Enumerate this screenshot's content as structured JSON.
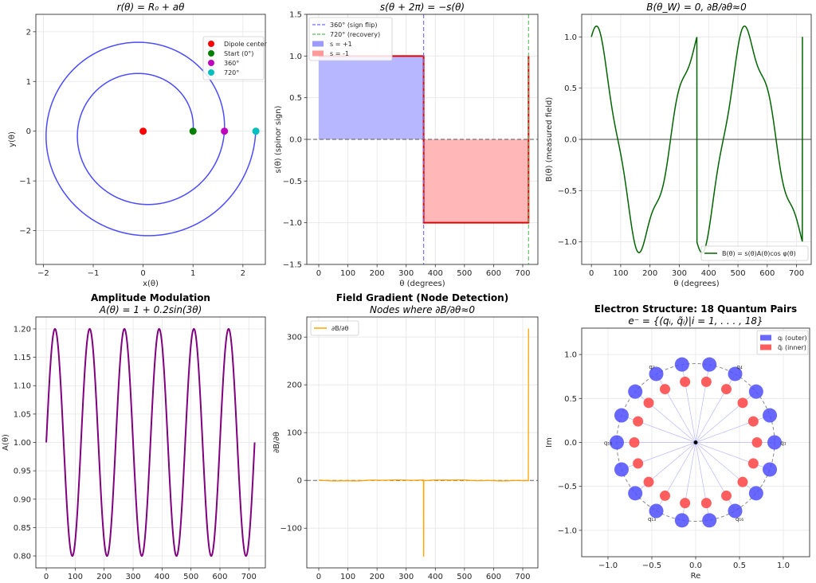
{
  "chart_data": [
    {
      "id": "spiral",
      "type": "line",
      "title": "",
      "subtitle": "r(θ) = R₀ + aθ",
      "xlabel": "x(θ)",
      "ylabel": "y(θ)",
      "xlim": [
        -2.15,
        2.45
      ],
      "ylim": [
        -2.68,
        2.35
      ],
      "xticks": [
        -2,
        -1,
        0,
        1,
        2
      ],
      "xticklabels": [
        "−2",
        "−1",
        "0",
        "1",
        "2"
      ],
      "yticks": [
        -2,
        -1,
        0,
        1,
        2
      ],
      "yticklabels": [
        "−2",
        "−1",
        "0",
        "1",
        "2"
      ],
      "grid": true,
      "R0": 1,
      "a": 0.1,
      "theta_deg_range": [
        0,
        720
      ],
      "line_color": "#4b4bff",
      "points": [
        {
          "label": "Dipole center",
          "x": 0,
          "y": 0,
          "color": "#ff0000"
        },
        {
          "label": "Start (0°)",
          "x": 1,
          "y": 0,
          "color": "#007f00"
        },
        {
          "label": "360°",
          "x": 1.63,
          "y": 0,
          "color": "#bf00bf"
        },
        {
          "label": "720°",
          "x": 2.26,
          "y": 0,
          "color": "#00bfbf"
        }
      ],
      "legend": "top-right"
    },
    {
      "id": "spinor",
      "type": "line",
      "title": "",
      "subtitle": "s(θ + 2π) = −s(θ)",
      "xlabel": "θ (degrees)",
      "ylabel": "s(θ) (spinor sign)",
      "xlim": [
        -41,
        752
      ],
      "ylim": [
        -1.5,
        1.5
      ],
      "xticks": [
        0,
        100,
        200,
        300,
        400,
        500,
        600,
        700
      ],
      "xticklabels": [
        "0",
        "100",
        "200",
        "300",
        "400",
        "500",
        "600",
        "700"
      ],
      "yticks": [
        -1.5,
        -1.0,
        -0.5,
        0.0,
        0.5,
        1.0,
        1.5
      ],
      "yticklabels": [
        "−1.5",
        "−1.0",
        "−0.5",
        "0.0",
        "0.5",
        "1.0",
        "1.5"
      ],
      "grid": true,
      "step": [
        {
          "from": 0,
          "to": 360,
          "value": 1
        },
        {
          "from": 360,
          "to": 720,
          "value": -1
        }
      ],
      "end_value_at_720": 1,
      "line_color": "#e00000",
      "vlines": [
        {
          "x": 360,
          "label": "360° (sign flip)",
          "color": "#6a6aff"
        },
        {
          "x": 720,
          "label": "720° (recovery)",
          "color": "#5cb85c"
        }
      ],
      "fills": [
        {
          "label": "s = +1",
          "color": "#b3b3ff"
        },
        {
          "label": "s = -1",
          "color": "#ffb3b3"
        }
      ],
      "legend": "top-left"
    },
    {
      "id": "field",
      "type": "line",
      "title": "",
      "subtitle": "B(θ_W) = 0, ∂B/∂θ≈0",
      "xlabel": "θ (degrees)",
      "ylabel": "B(θ) (measured field)",
      "xlim": [
        -33,
        750
      ],
      "ylim": [
        -1.22,
        1.22
      ],
      "xticks": [
        0,
        100,
        200,
        300,
        400,
        500,
        600,
        700
      ],
      "xticklabels": [
        "0",
        "100",
        "200",
        "300",
        "400",
        "500",
        "600",
        "700"
      ],
      "yticks": [
        -1.0,
        -0.5,
        0.0,
        0.5,
        1.0
      ],
      "yticklabels": [
        "−1.0",
        "−0.5",
        "0.0",
        "0.5",
        "1.0"
      ],
      "grid": true,
      "series_label": "B(θ) = s(θ)A(θ)cos φ(θ)",
      "line_color": "#006400",
      "legend": "bottom-right"
    },
    {
      "id": "amplitude",
      "type": "line",
      "title": "Amplitude Modulation",
      "subtitle": "A(θ) = 1 + 0.2sin(3θ)",
      "xlabel": "θ (degrees)",
      "ylabel": "A(θ)",
      "xlim": [
        -36,
        757
      ],
      "ylim": [
        0.779,
        1.221
      ],
      "xticks": [
        0,
        100,
        200,
        300,
        400,
        500,
        600,
        700
      ],
      "xticklabels": [
        "0",
        "100",
        "200",
        "300",
        "400",
        "500",
        "600",
        "700"
      ],
      "yticks": [
        0.8,
        0.85,
        0.9,
        0.95,
        1.0,
        1.05,
        1.1,
        1.15,
        1.2
      ],
      "yticklabels": [
        "0.80",
        "0.85",
        "0.90",
        "0.95",
        "1.00",
        "1.05",
        "1.10",
        "1.15",
        "1.20"
      ],
      "grid": true,
      "line_color": "#800080"
    },
    {
      "id": "gradient",
      "type": "line",
      "title": "Field Gradient (Node Detection)",
      "subtitle": "Nodes where ∂B/∂θ≈0",
      "xlabel": "θ (degrees)",
      "ylabel": "∂B/∂θ",
      "xlim": [
        -41,
        752
      ],
      "ylim": [
        -183,
        342
      ],
      "xticks": [
        0,
        100,
        200,
        300,
        400,
        500,
        600,
        700
      ],
      "xticklabels": [
        "0",
        "100",
        "200",
        "300",
        "400",
        "500",
        "600",
        "700"
      ],
      "yticks": [
        -100,
        0,
        100,
        200,
        300
      ],
      "yticklabels": [
        "−100",
        "0",
        "100",
        "200",
        "300"
      ],
      "grid": true,
      "series_label": "∂B/∂θ",
      "spikes": [
        {
          "x": 360,
          "y": -159
        },
        {
          "x": 720,
          "y": 318
        }
      ],
      "line_color": "#ffa500",
      "legend": "top-left"
    },
    {
      "id": "electron",
      "type": "scatter",
      "title": "Electron Structure: 18 Quantum Pairs",
      "subtitle": "e⁻ = {(qᵢ, q̃ᵢ)|i = 1, . . . , 18}",
      "xlabel": "Re",
      "ylabel": "Im",
      "xlim": [
        -1.3,
        1.3
      ],
      "ylim": [
        -1.3,
        1.3
      ],
      "xticks": [
        -1.0,
        -0.5,
        0.0,
        0.5,
        1.0
      ],
      "xticklabels": [
        "−1.0",
        "−0.5",
        "0.0",
        "0.5",
        "1.0"
      ],
      "yticks": [
        -1.0,
        -0.5,
        0.0,
        0.5,
        1.0
      ],
      "yticklabels": [
        "−1.0",
        "−0.5",
        "0.0",
        "0.5",
        "1.0"
      ],
      "grid": true,
      "pairs": 18,
      "outer_radius": 0.9,
      "inner_radius": 0.7,
      "outer": {
        "label": "qᵢ (outer)",
        "color": "#4d4dff"
      },
      "inner": {
        "label": "q̃ᵢ (inner)",
        "color": "#ff4d4d"
      },
      "point_labels": [
        {
          "index": 1,
          "text": "q₁"
        },
        {
          "index": 4,
          "text": "q₄"
        },
        {
          "index": 7,
          "text": "q₇"
        },
        {
          "index": 10,
          "text": "q₁₀"
        },
        {
          "index": 13,
          "text": "q₁₃"
        },
        {
          "index": 16,
          "text": "q₁₆"
        }
      ],
      "legend": "top-right"
    }
  ]
}
